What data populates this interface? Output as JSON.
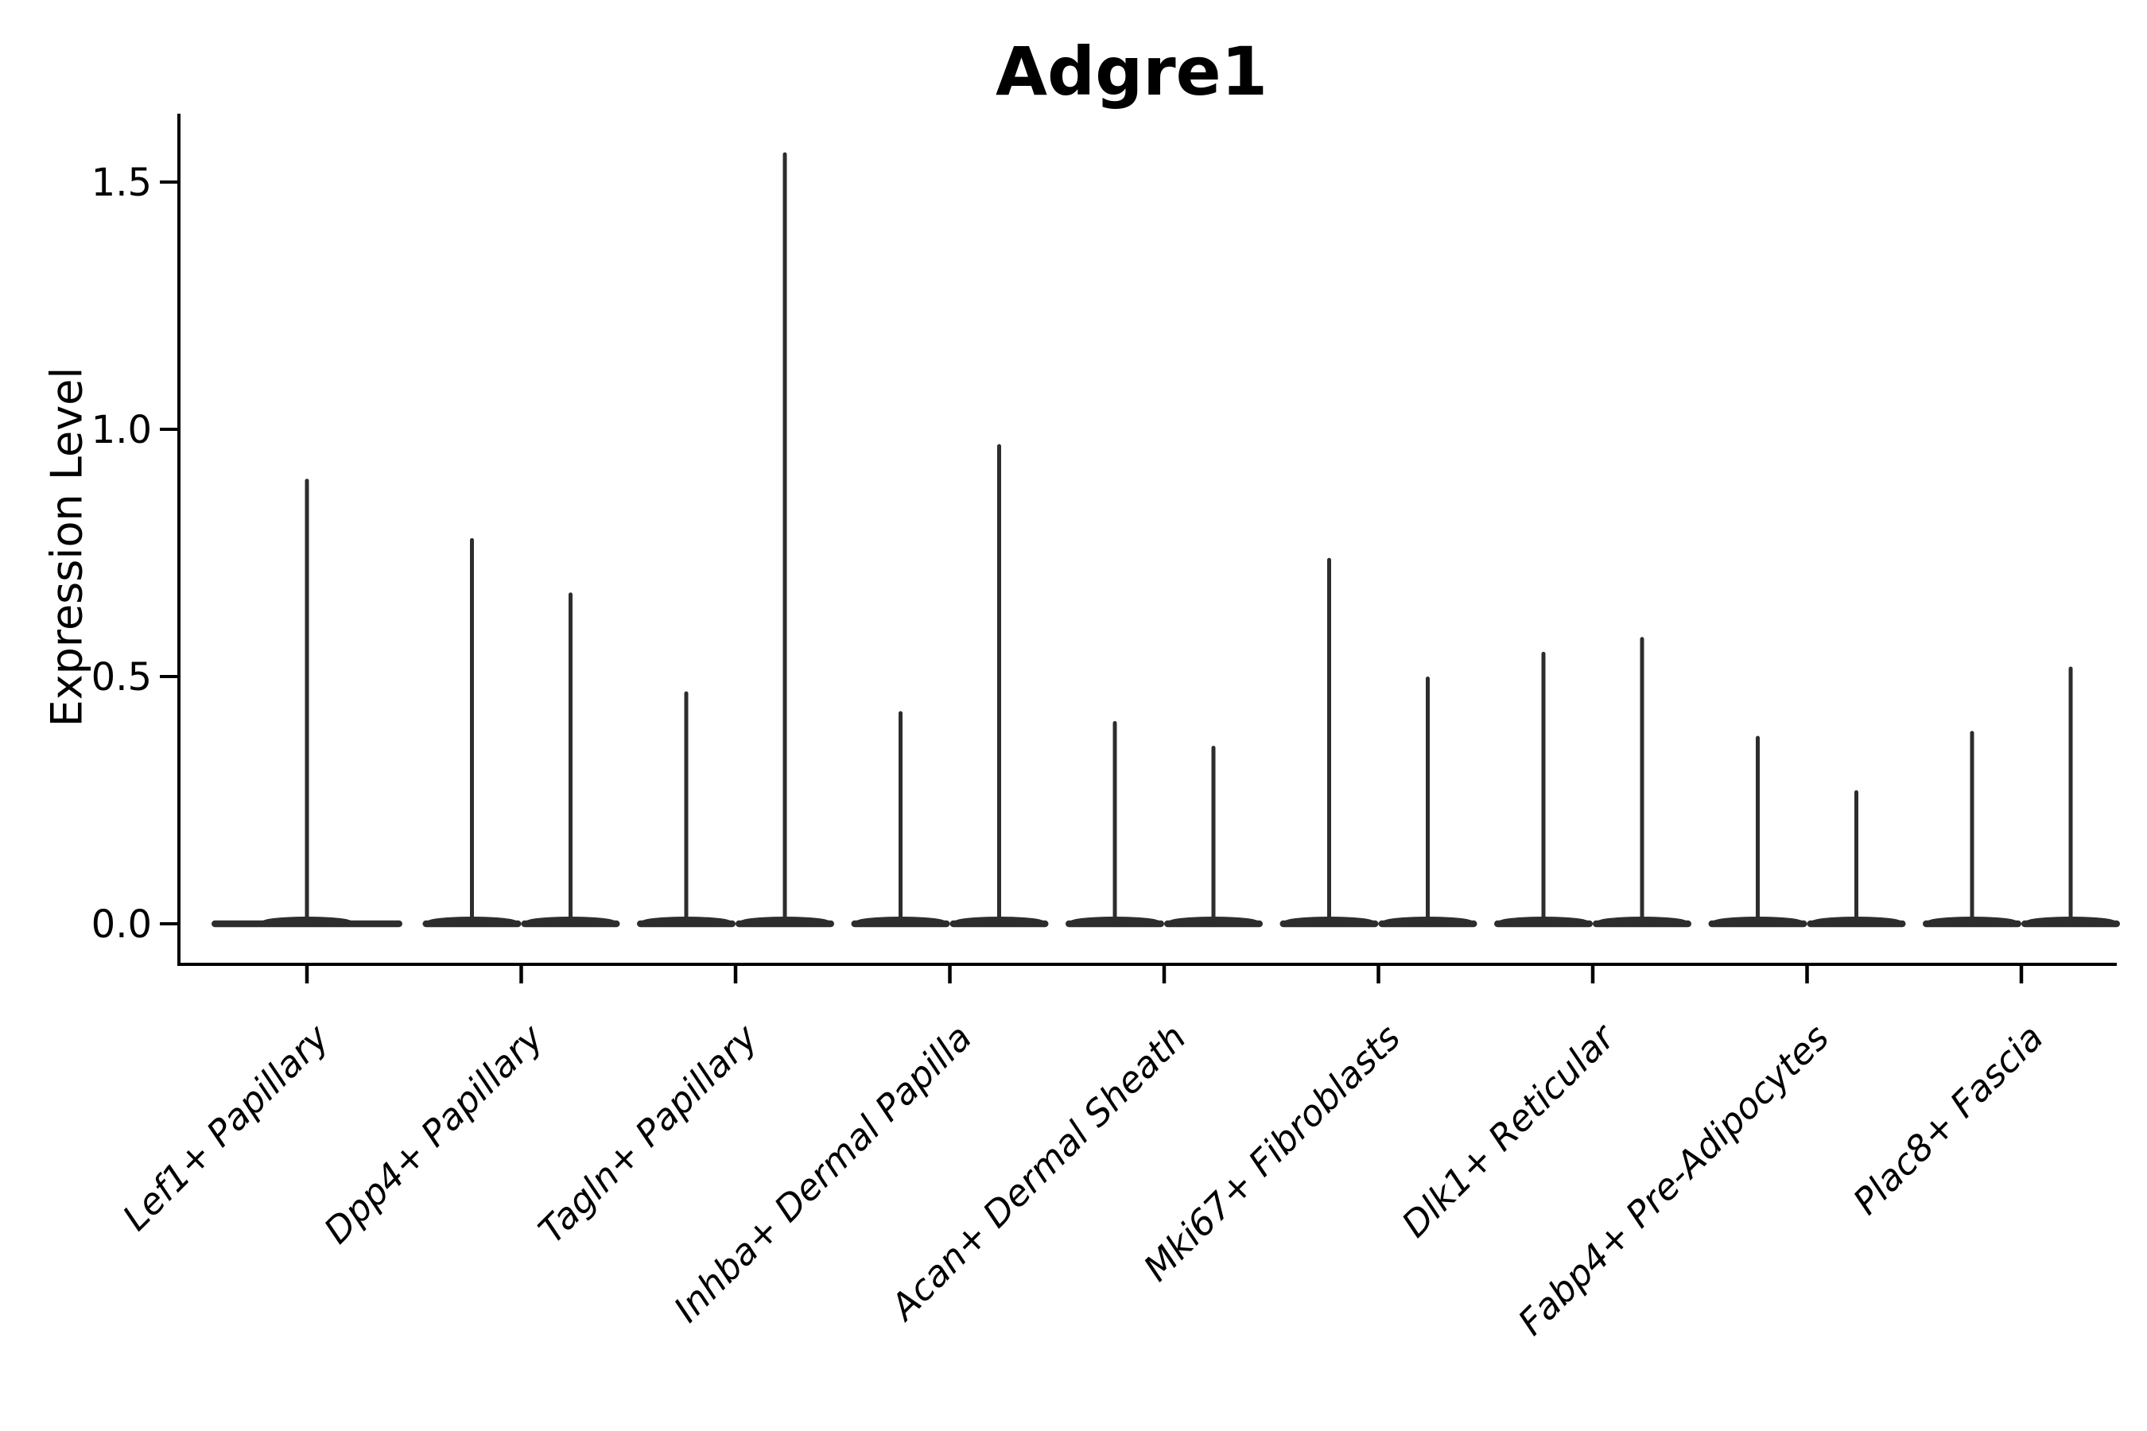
{
  "title": "Adgre1",
  "y_axis": {
    "label": "Expression Level"
  },
  "chart_data": {
    "type": "violin",
    "title": "Adgre1",
    "xlabel": "",
    "ylabel": "Expression Level",
    "background_color": "#ffffff",
    "violin_color": "#2d2d2d",
    "axis_color": "#000000",
    "text_color": "#000000",
    "grid": false,
    "legend": "none",
    "ylim": [
      -0.08,
      1.64
    ],
    "y_ticks": [
      0.0,
      0.5,
      1.0,
      1.5
    ],
    "y_tick_labels": [
      "0.0",
      "0.5",
      "1.0",
      "1.5"
    ],
    "x_tick_label_style": "italic, rotated 45deg, right-anchored",
    "baseline_value": 0.0,
    "categories": [
      "Lef1+ Papillary",
      "Dpp4+ Papillary",
      "Tagln+ Papillary",
      "Inhba+ Dermal Papilla",
      "Acan+ Dermal Sheath",
      "Mki67+ Fibroblasts",
      "Dlk1+ Reticular",
      "Fabp4+ Pre-Adipocytes",
      "Plac8+ Fascia"
    ],
    "series": [
      {
        "category": "Lef1+ Papillary",
        "spike_maxima": [
          0.9
        ]
      },
      {
        "category": "Dpp4+ Papillary",
        "spike_maxima": [
          0.78,
          0.67
        ]
      },
      {
        "category": "Tagln+ Papillary",
        "spike_maxima": [
          0.47,
          1.56
        ]
      },
      {
        "category": "Inhba+ Dermal Papilla",
        "spike_maxima": [
          0.43,
          0.97
        ]
      },
      {
        "category": "Acan+ Dermal Sheath",
        "spike_maxima": [
          0.41,
          0.36
        ]
      },
      {
        "category": "Mki67+ Fibroblasts",
        "spike_maxima": [
          0.74,
          0.5
        ]
      },
      {
        "category": "Dlk1+ Reticular",
        "spike_maxima": [
          0.55,
          0.58
        ]
      },
      {
        "category": "Fabp4+ Pre-Adipocytes",
        "spike_maxima": [
          0.38,
          0.27
        ]
      },
      {
        "category": "Plac8+ Fascia",
        "spike_maxima": [
          0.39,
          0.52
        ]
      }
    ],
    "annotation": "Each violin's density mass sits at 0 expression (flat baseline); thin vertical spikes reach each group's maximum expression value."
  }
}
